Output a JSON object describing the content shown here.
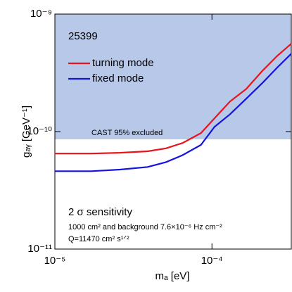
{
  "chart_data": {
    "type": "line",
    "xlabel": "mₐ [eV]",
    "ylabel": "gₐᵧ [GeV⁻¹]",
    "x": [
      1e-05,
      1.7e-05,
      2.6e-05,
      3.9e-05,
      5.1e-05,
      6.5e-05,
      8.5e-05,
      0.000104,
      0.00013,
      0.000165,
      0.00021,
      0.00026,
      0.00032
    ],
    "series": [
      {
        "name": "turning mode",
        "color": "#e8141c",
        "values": [
          6.5e-11,
          6.5e-11,
          6.6e-11,
          6.8e-11,
          7.2e-11,
          8e-11,
          9.7e-11,
          1.3e-10,
          1.8e-10,
          2.3e-10,
          3.3e-10,
          4.4e-10,
          5.6e-10
        ]
      },
      {
        "name": "fixed mode",
        "color": "#1414dc",
        "values": [
          4.6e-11,
          4.6e-11,
          4.75e-11,
          5e-11,
          5.5e-11,
          6.3e-11,
          7.7e-11,
          1.1e-10,
          1.4e-10,
          1.9e-10,
          2.6e-10,
          3.5e-10,
          4.6e-10
        ]
      }
    ],
    "xlim": [
      1e-05,
      0.00032
    ],
    "ylim": [
      1e-11,
      1e-09
    ],
    "xticks": [
      {
        "value": 1e-05,
        "label": "10⁻⁵"
      },
      {
        "value": 0.0001,
        "label": "10⁻⁴"
      }
    ],
    "yticks": [
      {
        "value": 1e-11,
        "label": "10⁻¹¹"
      },
      {
        "value": 1e-10,
        "label": "10⁻¹⁰"
      },
      {
        "value": 1e-09,
        "label": "10⁻⁹"
      }
    ],
    "log_x": true,
    "log_y": true,
    "legend": "upper left",
    "exclusion": {
      "label": "CAST 95% excluded",
      "y": 8.6e-11,
      "color": "#b8c8e8"
    },
    "annotations": [
      "25399",
      "2 σ sensitivity",
      "1000 cm² and background 7.6×10⁻⁶ Hz cm⁻²",
      "Q=11470 cm² s¹ᐟ²"
    ]
  }
}
